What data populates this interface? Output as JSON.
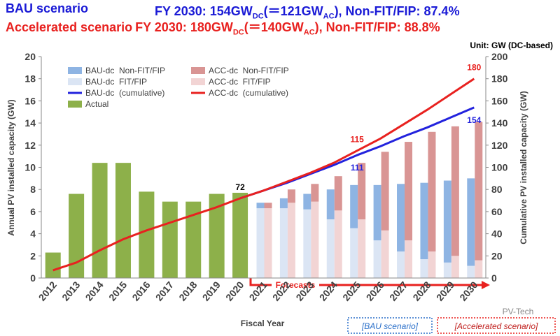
{
  "header": {
    "bau": {
      "name": "BAU scenario",
      "pre": "FY 2030: 154GW",
      "sub1": "DC",
      "mid": "(＝121GW",
      "sub2": "AC",
      "post": "), Non-FIT/FIP: 87.4%"
    },
    "acc": {
      "name": "Accelerated scenario",
      "pre": "FY 2030: 180GW",
      "sub1": "DC",
      "mid": "(＝140GW",
      "sub2": "AC",
      "post": "), Non-FIT/FIP: 88.8%"
    }
  },
  "chart_data": {
    "type": "bar",
    "unit_note": "Unit: GW (DC-based)",
    "y_label": "Annual PV installed capacity (GW)",
    "y2_label": "Cumulative PV installed capacity (GW)",
    "x_label": "Fiscal Year",
    "forecast_label": "Forecasts",
    "scenario_labels": [
      "[BAU scenario]",
      "[Accelerated scenario]"
    ],
    "watermark": "PV-Tech",
    "categories": [
      "2012",
      "2013",
      "2014",
      "2015",
      "2016",
      "2017",
      "2018",
      "2019",
      "2020",
      "2021",
      "2022",
      "2023",
      "2024",
      "2025",
      "2026",
      "2027",
      "2028",
      "2029",
      "2030"
    ],
    "ylim": [
      0,
      20
    ],
    "yticks": [
      0,
      2,
      4,
      6,
      8,
      10,
      12,
      14,
      16,
      18,
      20
    ],
    "y2lim": [
      0,
      200
    ],
    "y2ticks": [
      0,
      20,
      40,
      60,
      80,
      100,
      120,
      140,
      160,
      180,
      200
    ],
    "grid": false,
    "series": [
      {
        "name": "BAU-dc  Non-FIT/FIP",
        "type": "bar",
        "stack": "bau",
        "color": "#8eb4e3",
        "values": [
          null,
          null,
          null,
          null,
          null,
          null,
          null,
          null,
          null,
          0.5,
          0.9,
          1.4,
          2.7,
          3.9,
          5.0,
          6.1,
          6.9,
          7.4,
          7.9
        ]
      },
      {
        "name": "BAU-dc  FIT/FIP",
        "type": "bar",
        "stack": "bau",
        "color": "#dbe5f4",
        "values": [
          null,
          null,
          null,
          null,
          null,
          null,
          null,
          null,
          null,
          6.3,
          6.3,
          6.2,
          5.3,
          4.5,
          3.4,
          2.4,
          1.7,
          1.4,
          1.1
        ]
      },
      {
        "name": "BAU-dc  (cumulative)",
        "type": "line",
        "axis": "y2",
        "color": "#2222dd",
        "values": [
          null,
          null,
          null,
          null,
          null,
          null,
          null,
          null,
          72,
          79,
          86,
          94,
          102,
          111,
          119,
          128,
          136,
          145,
          154
        ]
      },
      {
        "name": "Actual",
        "type": "bar",
        "stack": "actual",
        "color": "#8db04a",
        "values": [
          2.3,
          7.6,
          10.4,
          10.4,
          7.8,
          6.9,
          6.9,
          7.6,
          7.7,
          null,
          null,
          null,
          null,
          null,
          null,
          null,
          null,
          null,
          null
        ]
      },
      {
        "name": "ACC-dc  Non-FIT/FIP",
        "type": "bar",
        "stack": "acc",
        "color": "#d99594",
        "values": [
          null,
          null,
          null,
          null,
          null,
          null,
          null,
          null,
          null,
          0.5,
          1.2,
          1.6,
          3.1,
          5.1,
          7.1,
          8.9,
          10.8,
          11.7,
          12.5
        ]
      },
      {
        "name": "ACC-dc  FIT/FIP",
        "type": "bar",
        "stack": "acc",
        "color": "#f2d4d4",
        "values": [
          null,
          null,
          null,
          null,
          null,
          null,
          null,
          null,
          null,
          6.3,
          6.8,
          6.9,
          6.1,
          5.3,
          4.3,
          3.4,
          2.4,
          2.0,
          1.6
        ]
      },
      {
        "name": "ACC-dc  (cumulative)",
        "type": "line",
        "axis": "y2",
        "color": "#e8211f",
        "values": [
          7,
          14,
          25,
          35,
          43,
          50,
          57,
          64,
          72,
          79,
          87,
          95,
          104,
          115,
          126,
          139,
          152,
          166,
          180
        ]
      }
    ],
    "annotations": [
      {
        "text": "72",
        "category": "2020",
        "value": 72,
        "color": "#000000",
        "position": "above"
      },
      {
        "text": "115",
        "category": "2025",
        "value": 115,
        "color": "#e8211f",
        "position": "above"
      },
      {
        "text": "111",
        "category": "2025",
        "value": 111,
        "color": "#2222dd",
        "position": "below"
      },
      {
        "text": "180",
        "category": "2030",
        "value": 180,
        "color": "#e8211f",
        "position": "above"
      },
      {
        "text": "154",
        "category": "2030",
        "value": 154,
        "color": "#2222dd",
        "position": "below"
      }
    ]
  }
}
